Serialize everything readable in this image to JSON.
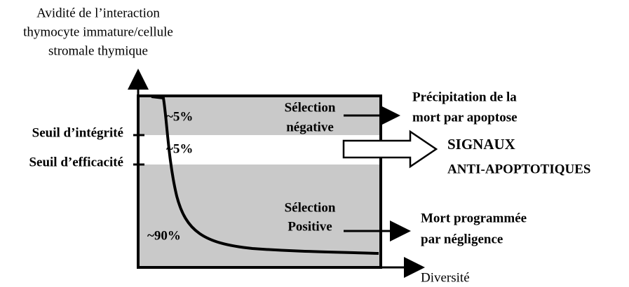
{
  "y_axis_label": [
    "Avidité de l’interaction",
    "thymocyte immature/cellule",
    "stromale thymique"
  ],
  "x_axis_label": "Diversité",
  "thresholds": [
    "Seuil d’intégrité",
    "Seuil d’efficacité"
  ],
  "percentages": [
    "~5%",
    "~5%",
    "~90%"
  ],
  "zones": [
    [
      "Sélection",
      "négative"
    ],
    [
      "Sélection",
      "Positive"
    ]
  ],
  "outcomes": {
    "apoptosis": [
      "Précipitation de la",
      "mort par apoptose"
    ],
    "signals": [
      "SIGNAUX",
      "ANTI-APOPTOTIQUES"
    ],
    "neglect": [
      "Mort programmée",
      "par négligence"
    ]
  }
}
